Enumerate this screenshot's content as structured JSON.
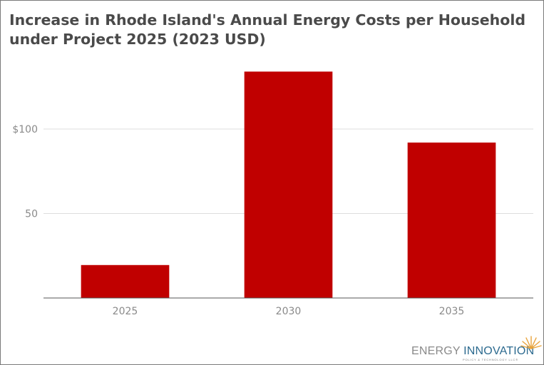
{
  "chart_data": {
    "type": "bar",
    "title": "Increase in Rhode Island's Annual Energy Costs per Household under Project 2025 (2023 USD)",
    "categories": [
      "2025",
      "2030",
      "2035"
    ],
    "values": [
      19.5,
      134,
      92
    ],
    "y_ticks": [
      "50",
      "$100"
    ],
    "y_tick_values": [
      50,
      100
    ],
    "ylim": [
      0,
      150
    ],
    "grid": true,
    "bar_color": "#c00000",
    "xlabel": "",
    "ylabel": ""
  },
  "logo": {
    "word1": "ENERGY",
    "word2": "INNOVATION",
    "tagline": "POLICY & TECHNOLOGY LLC®"
  },
  "colors": {
    "title": "#4a4a4a",
    "gridline": "#dddddd",
    "axis": "#555555",
    "tick_text": "#8a8a8a",
    "brand_blue": "#2c6a8f",
    "brand_gold": "#e8a33b"
  }
}
